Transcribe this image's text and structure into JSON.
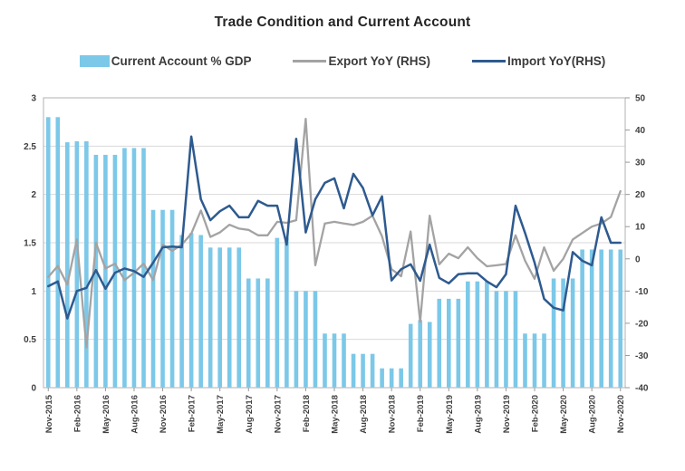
{
  "title": "Trade Condition and Current Account",
  "legend": {
    "items": [
      {
        "label": "Current Account % GDP",
        "marker": "bar-swatch",
        "color": "#7CC8E8"
      },
      {
        "label": "Export YoY (RHS)",
        "marker": "line-swatch",
        "color": "#A3A3A3"
      },
      {
        "label": "Import YoY(RHS)",
        "marker": "line-swatch",
        "color": "#2E5A8F"
      }
    ]
  },
  "chart_data": {
    "type": "combo-bar-line",
    "x_range": "Nov-2015 to Nov-2020, monthly (61 points)",
    "x_ticks": [
      {
        "i": 0,
        "label": "Nov-2015"
      },
      {
        "i": 3,
        "label": "Feb-2016"
      },
      {
        "i": 6,
        "label": "May-2016"
      },
      {
        "i": 9,
        "label": "Aug-2016"
      },
      {
        "i": 12,
        "label": "Nov-2016"
      },
      {
        "i": 15,
        "label": "Feb-2017"
      },
      {
        "i": 18,
        "label": "May-2017"
      },
      {
        "i": 21,
        "label": "Aug-2017"
      },
      {
        "i": 24,
        "label": "Nov-2017"
      },
      {
        "i": 27,
        "label": "Feb-2018"
      },
      {
        "i": 30,
        "label": "May-2018"
      },
      {
        "i": 33,
        "label": "Aug-2018"
      },
      {
        "i": 36,
        "label": "Nov-2018"
      },
      {
        "i": 39,
        "label": "Feb-2019"
      },
      {
        "i": 42,
        "label": "May-2019"
      },
      {
        "i": 45,
        "label": "Aug-2019"
      },
      {
        "i": 48,
        "label": "Nov-2019"
      },
      {
        "i": 51,
        "label": "Feb-2020"
      },
      {
        "i": 54,
        "label": "May-2020"
      },
      {
        "i": 57,
        "label": "Aug-2020"
      },
      {
        "i": 60,
        "label": "Nov-2020"
      }
    ],
    "left_axis": {
      "min": 0,
      "max": 3,
      "ticks": [
        {
          "v": 3,
          "label": "3"
        },
        {
          "v": 2.5,
          "label": "2.5"
        },
        {
          "v": 2,
          "label": "2"
        },
        {
          "v": 1.5,
          "label": "1.5"
        },
        {
          "v": 1,
          "label": "1"
        },
        {
          "v": 0.5,
          "label": "0.5"
        },
        {
          "v": 0,
          "label": "0"
        }
      ]
    },
    "right_axis": {
      "min": -40,
      "max": 50,
      "ticks": [
        {
          "v": 50,
          "label": "50"
        },
        {
          "v": 40,
          "label": "40"
        },
        {
          "v": 30,
          "label": "30"
        },
        {
          "v": 20,
          "label": "20"
        },
        {
          "v": 10,
          "label": "10"
        },
        {
          "v": 0,
          "label": "0"
        },
        {
          "v": -10,
          "label": "-10"
        },
        {
          "v": -20,
          "label": "-20"
        },
        {
          "v": -30,
          "label": "-30"
        },
        {
          "v": -40,
          "label": "-40"
        }
      ]
    },
    "series": [
      {
        "name": "Current Account % GDP",
        "type": "bar",
        "axis": "left",
        "color": "#7CC8E8",
        "values": [
          2.8,
          2.8,
          2.54,
          2.55,
          2.55,
          2.41,
          2.41,
          2.41,
          2.48,
          2.48,
          2.48,
          1.84,
          1.84,
          1.84,
          1.58,
          1.6,
          1.58,
          1.45,
          1.45,
          1.45,
          1.45,
          1.13,
          1.13,
          1.13,
          1.55,
          1.55,
          1.0,
          1.0,
          1.0,
          0.56,
          0.56,
          0.56,
          0.35,
          0.35,
          0.35,
          0.2,
          0.2,
          0.2,
          0.66,
          0.7,
          0.68,
          0.92,
          0.92,
          0.92,
          1.1,
          1.1,
          1.1,
          1.0,
          1.0,
          1.0,
          0.56,
          0.56,
          0.56,
          1.13,
          1.13,
          1.13,
          1.43,
          1.43,
          1.43,
          1.43,
          1.43
        ]
      },
      {
        "name": "Export YoY (RHS)",
        "type": "line",
        "axis": "right",
        "color": "#A3A3A3",
        "values": [
          -5.6,
          -2.2,
          -8.0,
          6.0,
          -27.5,
          5.0,
          -3.0,
          -1.5,
          -6.6,
          -4.3,
          -1.5,
          -6.6,
          4.4,
          2.5,
          4.4,
          7.8,
          15.0,
          6.8,
          8.2,
          10.6,
          9.4,
          9.0,
          7.3,
          7.3,
          11.5,
          11.2,
          12.0,
          43.5,
          -2.0,
          11.0,
          11.5,
          11.0,
          10.5,
          11.5,
          13.4,
          7.0,
          -3.2,
          -5.4,
          8.5,
          -19.5,
          13.4,
          -1.7,
          1.6,
          0.2,
          3.6,
          0.2,
          -2.3,
          -2.0,
          -1.6,
          7.3,
          -0.6,
          -6.2,
          3.6,
          -3.7,
          0.0,
          6.0,
          8.0,
          10.0,
          11.0,
          13.0,
          21.0
        ]
      },
      {
        "name": "Import YoY(RHS)",
        "type": "line",
        "axis": "right",
        "color": "#2E5A8F",
        "values": [
          -8.5,
          -7.0,
          -18.5,
          -10.0,
          -9.0,
          -3.5,
          -9.3,
          -4.3,
          -3.0,
          -3.8,
          -5.6,
          -1.2,
          3.6,
          3.8,
          3.6,
          38.0,
          18.5,
          12.0,
          14.8,
          16.5,
          12.9,
          12.9,
          18.0,
          16.5,
          16.5,
          4.4,
          37.3,
          8.2,
          18.5,
          23.6,
          25.0,
          15.7,
          26.4,
          22.0,
          13.5,
          19.4,
          -6.7,
          -3.2,
          -1.7,
          -6.8,
          4.4,
          -5.9,
          -7.6,
          -4.8,
          -4.5,
          -4.5,
          -7.0,
          -8.8,
          -4.8,
          16.5,
          8.0,
          -1.2,
          -12.4,
          -15.2,
          -16.0,
          2.1,
          -0.6,
          -2.0,
          12.9,
          5.0,
          5.0
        ]
      }
    ],
    "grid": "horizontal at every 0.5 left-axis step",
    "legend_position": "top"
  },
  "colors": {
    "bar": "#7CC8E8",
    "export_line": "#A3A3A3",
    "import_line": "#2E5A8F",
    "gridline": "#D9D9D9",
    "plot_border": "#BFBFBF",
    "tick": "#999999",
    "axis_text": "#404040",
    "title_text": "#262626"
  }
}
